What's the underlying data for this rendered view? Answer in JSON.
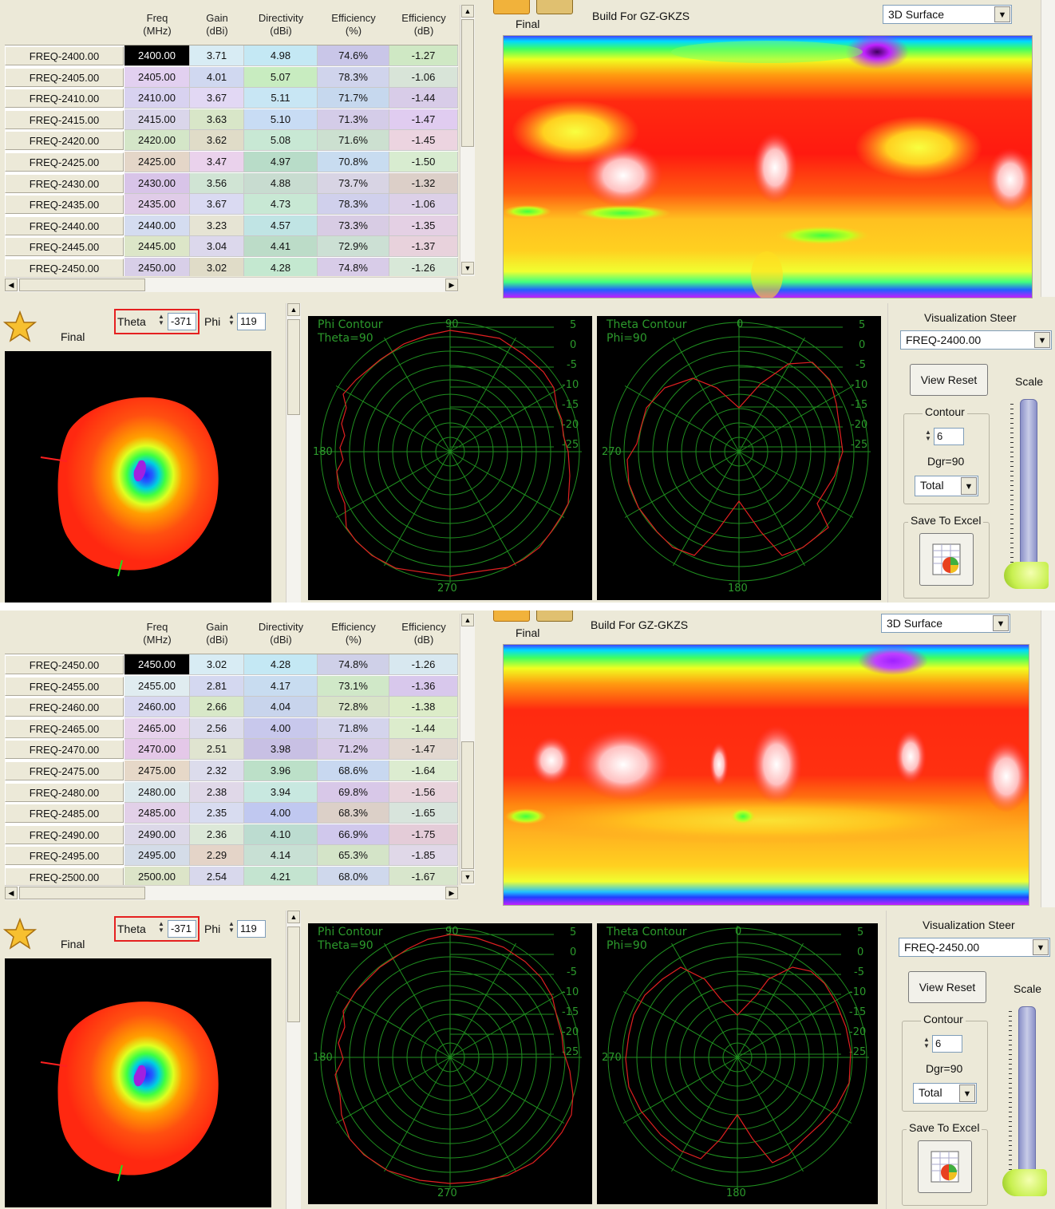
{
  "panels": [
    {
      "headers": [
        {
          "top": "Freq",
          "bot": "(MHz)"
        },
        {
          "top": "Gain",
          "bot": "(dBi)"
        },
        {
          "top": "Directivity",
          "bot": "(dBi)"
        },
        {
          "top": "Efficiency",
          "bot": "(%)"
        },
        {
          "top": "Efficiency",
          "bot": "(dB)"
        }
      ],
      "rows": [
        {
          "label": "FREQ-2400.00",
          "freq": "2400.00",
          "gain": "3.71",
          "dir": "4.98",
          "eff_pct": "74.6%",
          "eff_db": "-1.27",
          "colors": [
            "#000000",
            "#d8ecf4",
            "#c4e8f4",
            "#c9c6e8",
            "#cfe8c4"
          ]
        },
        {
          "label": "FREQ-2405.00",
          "freq": "2405.00",
          "gain": "4.01",
          "dir": "5.07",
          "eff_pct": "78.3%",
          "eff_db": "-1.06",
          "colors": [
            "#e2d0f0",
            "#d0d8f0",
            "#c8ecc0",
            "#d0d4ec",
            "#d8e4d8"
          ]
        },
        {
          "label": "FREQ-2410.00",
          "freq": "2410.00",
          "gain": "3.67",
          "dir": "5.11",
          "eff_pct": "71.7%",
          "eff_db": "-1.44",
          "colors": [
            "#d8d2f0",
            "#e2d8f4",
            "#c8e6f4",
            "#c6d8ee",
            "#d8cce8"
          ]
        },
        {
          "label": "FREQ-2415.00",
          "freq": "2415.00",
          "gain": "3.63",
          "dir": "5.10",
          "eff_pct": "71.3%",
          "eff_db": "-1.47",
          "colors": [
            "#dad6ea",
            "#d8e6c8",
            "#c8dcf4",
            "#d4cce8",
            "#e0ccf0"
          ]
        },
        {
          "label": "FREQ-2420.00",
          "freq": "2420.00",
          "gain": "3.62",
          "dir": "5.08",
          "eff_pct": "71.6%",
          "eff_db": "-1.45",
          "colors": [
            "#d4e6c8",
            "#e0dcc8",
            "#c8e8d4",
            "#cce0d0",
            "#ecd4e0"
          ]
        },
        {
          "label": "FREQ-2425.00",
          "freq": "2425.00",
          "gain": "3.47",
          "dir": "4.97",
          "eff_pct": "70.8%",
          "eff_db": "-1.50",
          "colors": [
            "#e4d6c8",
            "#ead2ec",
            "#b8dcc8",
            "#c8dcf0",
            "#d8ecd0"
          ]
        },
        {
          "label": "FREQ-2430.00",
          "freq": "2430.00",
          "gain": "3.56",
          "dir": "4.88",
          "eff_pct": "73.7%",
          "eff_db": "-1.32",
          "colors": [
            "#d8c4e8",
            "#d0e4d4",
            "#c8dcd0",
            "#d8d4e4",
            "#dccfc8"
          ]
        },
        {
          "label": "FREQ-2435.00",
          "freq": "2435.00",
          "gain": "3.67",
          "dir": "4.73",
          "eff_pct": "78.3%",
          "eff_db": "-1.06",
          "colors": [
            "#e0cce8",
            "#dadaf2",
            "#c8e8d4",
            "#d0d0ec",
            "#dcd0e8"
          ]
        },
        {
          "label": "FREQ-2440.00",
          "freq": "2440.00",
          "gain": "3.23",
          "dir": "4.57",
          "eff_pct": "73.3%",
          "eff_db": "-1.35",
          "colors": [
            "#d4dcf0",
            "#e6e4d4",
            "#c0e4e4",
            "#d8cce4",
            "#e4d0e4"
          ]
        },
        {
          "label": "FREQ-2445.00",
          "freq": "2445.00",
          "gain": "3.04",
          "dir": "4.41",
          "eff_pct": "72.9%",
          "eff_db": "-1.37",
          "colors": [
            "#dce6c8",
            "#dcd8ec",
            "#bcdcc8",
            "#cce0d4",
            "#e8d2dc"
          ]
        },
        {
          "label": "FREQ-2450.00",
          "freq": "2450.00",
          "gain": "3.02",
          "dir": "4.28",
          "eff_pct": "74.8%",
          "eff_db": "-1.26",
          "colors": [
            "#d8cfe8",
            "#e0dcc8",
            "#c4e8d0",
            "#d8cce8",
            "#d8e8d8"
          ]
        }
      ],
      "toolbar": {
        "final_label": "Final",
        "build_label": "Build For GZ-GKZS",
        "view_mode": "3D Surface"
      },
      "pattern": {
        "final_label": "Final",
        "theta_label": "Theta",
        "theta_value": "-371",
        "phi_label": "Phi",
        "phi_value": "119"
      },
      "phi_plot": {
        "title": "Phi Contour",
        "subtitle": "Theta=90",
        "top_tick": "90",
        "bottom_tick": "270",
        "left_tick": "180",
        "rings": [
          "5",
          "0",
          "-5",
          "-10",
          "-15",
          "-20",
          "-25"
        ]
      },
      "theta_plot": {
        "title": "Theta Contour",
        "subtitle": "Phi=90",
        "top_tick": "0",
        "bottom_tick": "180",
        "left_tick": "270",
        "rings": [
          "5",
          "0",
          "-5",
          "-10",
          "-15",
          "-20",
          "-25"
        ]
      },
      "steer": {
        "title": "Visualization Steer",
        "selected": "FREQ-2400.00",
        "view_reset": "View Reset",
        "scale_label": "Scale",
        "contour_label": "Contour",
        "contour_value": "6",
        "dgr_label": "Dgr=90",
        "total_option": "Total",
        "save_label": "Save To Excel"
      }
    },
    {
      "headers": [
        {
          "top": "Freq",
          "bot": "(MHz)"
        },
        {
          "top": "Gain",
          "bot": "(dBi)"
        },
        {
          "top": "Directivity",
          "bot": "(dBi)"
        },
        {
          "top": "Efficiency",
          "bot": "(%)"
        },
        {
          "top": "Efficiency",
          "bot": "(dB)"
        }
      ],
      "rows": [
        {
          "label": "FREQ-2450.00",
          "freq": "2450.00",
          "gain": "3.02",
          "dir": "4.28",
          "eff_pct": "74.8%",
          "eff_db": "-1.26",
          "colors": [
            "#000000",
            "#d8ecf4",
            "#c4e8f4",
            "#cfd0e8",
            "#d8e8f0"
          ]
        },
        {
          "label": "FREQ-2455.00",
          "freq": "2455.00",
          "gain": "2.81",
          "dir": "4.17",
          "eff_pct": "73.1%",
          "eff_db": "-1.36",
          "colors": [
            "#e0ecf0",
            "#d4d8f0",
            "#c8dcf0",
            "#d0e8c8",
            "#d8c8ec"
          ]
        },
        {
          "label": "FREQ-2460.00",
          "freq": "2460.00",
          "gain": "2.66",
          "dir": "4.04",
          "eff_pct": "72.8%",
          "eff_db": "-1.38",
          "colors": [
            "#d8d8f0",
            "#d8e8c8",
            "#c8d4ec",
            "#d8e4c8",
            "#dcecc8"
          ]
        },
        {
          "label": "FREQ-2465.00",
          "freq": "2465.00",
          "gain": "2.56",
          "dir": "4.00",
          "eff_pct": "71.8%",
          "eff_db": "-1.44",
          "colors": [
            "#e6d2ec",
            "#dcdcec",
            "#c8c8ec",
            "#d4d4ec",
            "#dceccc"
          ]
        },
        {
          "label": "FREQ-2470.00",
          "freq": "2470.00",
          "gain": "2.51",
          "dir": "3.98",
          "eff_pct": "71.2%",
          "eff_db": "-1.47",
          "colors": [
            "#e4c8e8",
            "#e0e4d0",
            "#c8c0e4",
            "#d8cce8",
            "#e2d8d0"
          ]
        },
        {
          "label": "FREQ-2475.00",
          "freq": "2475.00",
          "gain": "2.32",
          "dir": "3.96",
          "eff_pct": "68.6%",
          "eff_db": "-1.64",
          "colors": [
            "#e6d8c8",
            "#dcdcec",
            "#bce0c8",
            "#c8d8f0",
            "#dcecd0"
          ]
        },
        {
          "label": "FREQ-2480.00",
          "freq": "2480.00",
          "gain": "2.38",
          "dir": "3.94",
          "eff_pct": "69.8%",
          "eff_db": "-1.56",
          "colors": [
            "#dce8ec",
            "#e0d8e8",
            "#c8e8e0",
            "#d8c8e8",
            "#e8d4dc"
          ]
        },
        {
          "label": "FREQ-2485.00",
          "freq": "2485.00",
          "gain": "2.35",
          "dir": "4.00",
          "eff_pct": "68.3%",
          "eff_db": "-1.65",
          "colors": [
            "#e2d0e8",
            "#d8dcf0",
            "#c0c8f0",
            "#dcd0c8",
            "#d8e4dc"
          ]
        },
        {
          "label": "FREQ-2490.00",
          "freq": "2490.00",
          "gain": "2.36",
          "dir": "4.10",
          "eff_pct": "66.9%",
          "eff_db": "-1.75",
          "colors": [
            "#dcd8e8",
            "#dce8d8",
            "#bcdcd0",
            "#d0c8ec",
            "#e4ccd8"
          ]
        },
        {
          "label": "FREQ-2495.00",
          "freq": "2495.00",
          "gain": "2.29",
          "dir": "4.14",
          "eff_pct": "65.3%",
          "eff_db": "-1.85",
          "colors": [
            "#d4dce8",
            "#e4d4c8",
            "#c8e0d4",
            "#d4e4c8",
            "#e0d8e8"
          ]
        },
        {
          "label": "FREQ-2500.00",
          "freq": "2500.00",
          "gain": "2.54",
          "dir": "4.21",
          "eff_pct": "68.0%",
          "eff_db": "-1.67",
          "colors": [
            "#dce4c8",
            "#d8d8ec",
            "#c4e4d0",
            "#cfd8ec",
            "#d8e6cc"
          ]
        }
      ],
      "toolbar": {
        "final_label": "Final",
        "build_label": "Build For GZ-GKZS",
        "view_mode": "3D Surface"
      },
      "pattern": {
        "final_label": "Final",
        "theta_label": "Theta",
        "theta_value": "-371",
        "phi_label": "Phi",
        "phi_value": "119"
      },
      "phi_plot": {
        "title": "Phi Contour",
        "subtitle": "Theta=90",
        "top_tick": "90",
        "bottom_tick": "270",
        "left_tick": "180",
        "rings": [
          "5",
          "0",
          "-5",
          "-10",
          "-15",
          "-20",
          "-25"
        ]
      },
      "theta_plot": {
        "title": "Theta Contour",
        "subtitle": "Phi=90",
        "top_tick": "0",
        "bottom_tick": "180",
        "left_tick": "270",
        "rings": [
          "5",
          "0",
          "-5",
          "-10",
          "-15",
          "-20",
          "-25"
        ]
      },
      "steer": {
        "title": "Visualization Steer",
        "selected": "FREQ-2450.00",
        "view_reset": "View Reset",
        "scale_label": "Scale",
        "contour_label": "Contour",
        "contour_value": "6",
        "dgr_label": "Dgr=90",
        "total_option": "Total",
        "save_label": "Save To Excel"
      }
    }
  ],
  "icons": {
    "star": "star-icon",
    "export": "spreadsheet-chart-icon"
  },
  "colors": {
    "plot_grid": "#1f8f1f",
    "pattern_trace": "#e02020",
    "highlight_box": "#e52020"
  }
}
